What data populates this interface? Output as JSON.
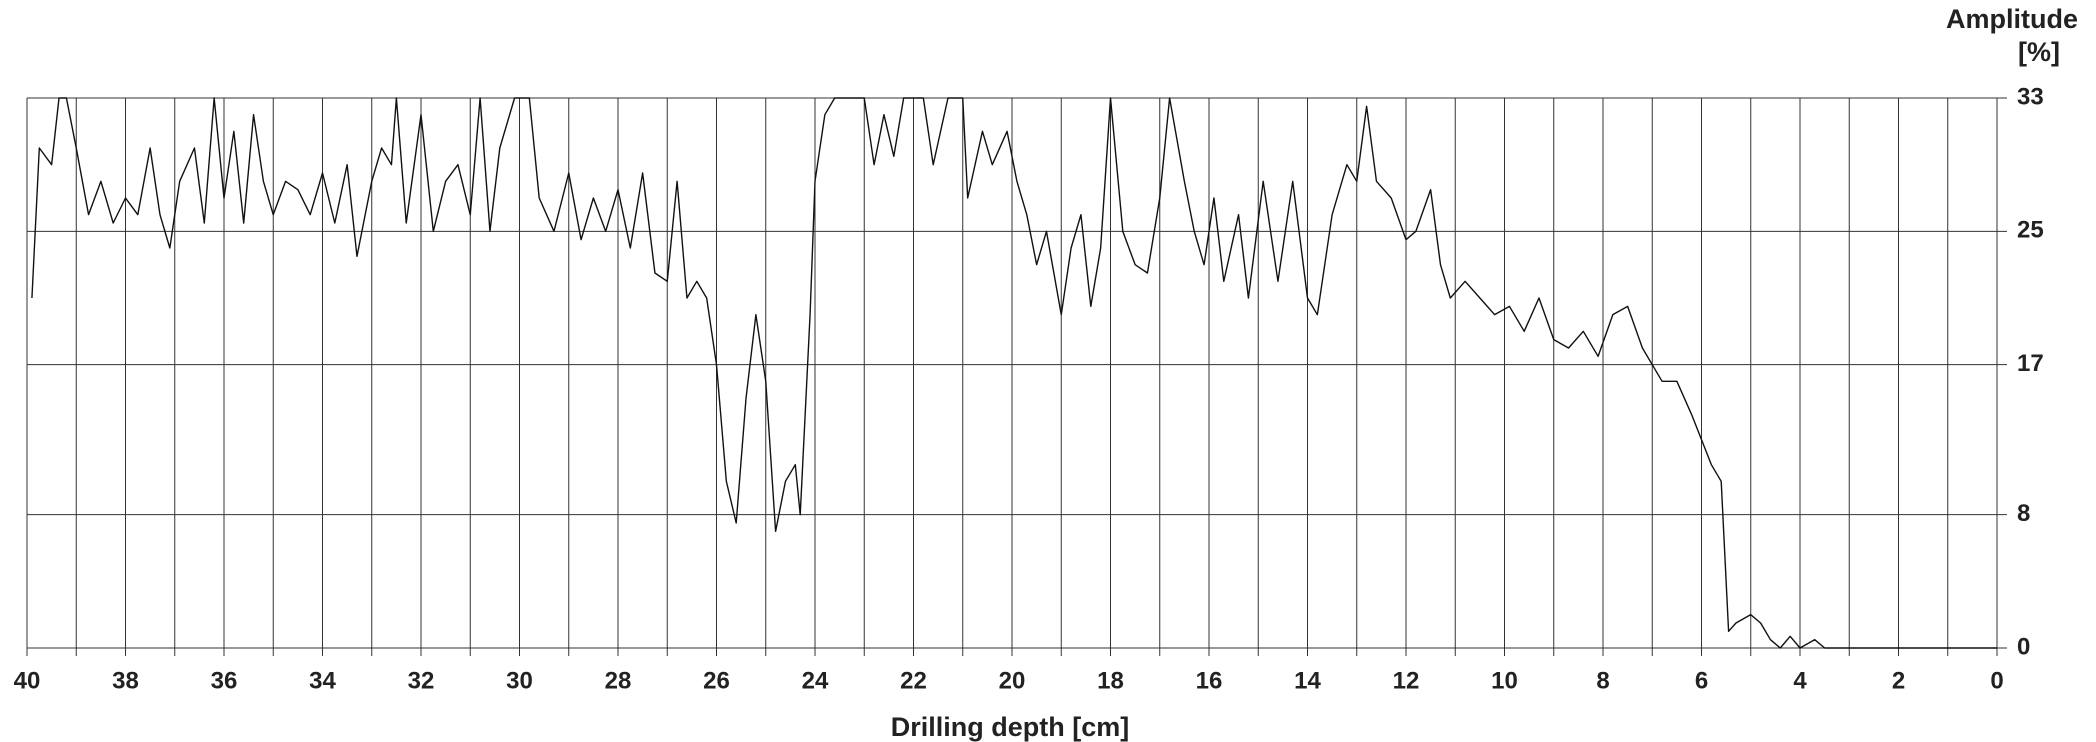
{
  "chart_data": {
    "type": "line",
    "y_label_lines": [
      "Amplitude",
      "[%]"
    ],
    "x_label": "Drilling depth [cm]",
    "xlim": [
      40,
      0
    ],
    "ylim": [
      0,
      33
    ],
    "xticks": [
      40,
      38,
      36,
      34,
      32,
      30,
      28,
      26,
      24,
      22,
      20,
      18,
      16,
      14,
      12,
      10,
      8,
      6,
      4,
      2,
      0
    ],
    "x_minor_ticks": [
      39,
      37,
      35,
      33,
      31,
      29,
      27,
      25,
      23,
      21,
      19,
      17,
      15,
      13,
      11,
      9,
      7,
      5,
      3,
      1
    ],
    "yticks": [
      0,
      8,
      17,
      25,
      33
    ],
    "grid": true,
    "series": [
      {
        "name": null,
        "color": "#111111",
        "x": [
          39.9,
          39.75,
          39.5,
          39.35,
          39.2,
          39.0,
          38.75,
          38.5,
          38.25,
          38.0,
          37.75,
          37.5,
          37.3,
          37.1,
          36.9,
          36.6,
          36.4,
          36.2,
          36.0,
          35.8,
          35.6,
          35.4,
          35.2,
          35.0,
          34.75,
          34.5,
          34.25,
          34.0,
          33.75,
          33.5,
          33.3,
          33.0,
          32.8,
          32.6,
          32.5,
          32.3,
          32.0,
          31.75,
          31.5,
          31.25,
          31.0,
          30.8,
          30.6,
          30.4,
          30.1,
          29.8,
          29.6,
          29.3,
          29.0,
          28.75,
          28.5,
          28.25,
          28.0,
          27.75,
          27.5,
          27.25,
          27.0,
          26.8,
          26.6,
          26.4,
          26.2,
          26.0,
          25.8,
          25.6,
          25.4,
          25.2,
          25.0,
          24.8,
          24.6,
          24.4,
          24.3,
          24.1,
          24.0,
          23.8,
          23.6,
          23.0,
          22.8,
          22.6,
          22.4,
          22.2,
          21.8,
          21.6,
          21.3,
          21.0,
          20.9,
          20.6,
          20.4,
          20.1,
          19.9,
          19.7,
          19.5,
          19.3,
          19.0,
          18.8,
          18.6,
          18.4,
          18.2,
          18.0,
          17.75,
          17.5,
          17.25,
          17.0,
          16.8,
          16.5,
          16.3,
          16.1,
          15.9,
          15.7,
          15.4,
          15.2,
          14.9,
          14.6,
          14.3,
          14.0,
          13.8,
          13.5,
          13.2,
          13.0,
          12.8,
          12.6,
          12.3,
          12.0,
          11.8,
          11.5,
          11.3,
          11.1,
          10.8,
          10.5,
          10.2,
          9.9,
          9.6,
          9.3,
          9.0,
          8.7,
          8.4,
          8.1,
          7.8,
          7.5,
          7.2,
          7.0,
          6.8,
          6.5,
          6.2,
          6.0,
          5.8,
          5.6,
          5.45,
          5.3,
          5.0,
          4.8,
          4.6,
          4.4,
          4.2,
          4.0,
          3.7,
          3.5,
          2.0,
          0.0
        ],
        "values": [
          21,
          30,
          29,
          33,
          33,
          30,
          26,
          28,
          25.5,
          27,
          26,
          30,
          26,
          24,
          28,
          30,
          25.5,
          33,
          27,
          31,
          25.5,
          32,
          28,
          26,
          28,
          27.5,
          26,
          28.5,
          25.5,
          29,
          23.5,
          28,
          30,
          29,
          33,
          25.5,
          32,
          25,
          28,
          29,
          26,
          33,
          25,
          30,
          33,
          33,
          27,
          25,
          28.5,
          24.5,
          27,
          25,
          27.5,
          24,
          28.5,
          22.5,
          22,
          28,
          21,
          22,
          21,
          17,
          10,
          7.5,
          15,
          20,
          16,
          7,
          10,
          11,
          8,
          20,
          28,
          32,
          33,
          33,
          29,
          32,
          29.5,
          33,
          33,
          29,
          33,
          33,
          27,
          31,
          29,
          31,
          28,
          26,
          23,
          25,
          20,
          24,
          26,
          20.5,
          24,
          33,
          25,
          23,
          22.5,
          27,
          33,
          28,
          25,
          23,
          27,
          22,
          26,
          21,
          28,
          22,
          28,
          21,
          20,
          26,
          29,
          28,
          32.5,
          28,
          27,
          24.5,
          25,
          27.5,
          23,
          21,
          22,
          21,
          20,
          20.5,
          19,
          21,
          18.5,
          18,
          19,
          17.5,
          20,
          20.5,
          18,
          17,
          16,
          16,
          14,
          12.5,
          11,
          10,
          1,
          1.5,
          2,
          1.5,
          0.5,
          0,
          0.7,
          0,
          0.5,
          0,
          0,
          0
        ]
      }
    ]
  }
}
